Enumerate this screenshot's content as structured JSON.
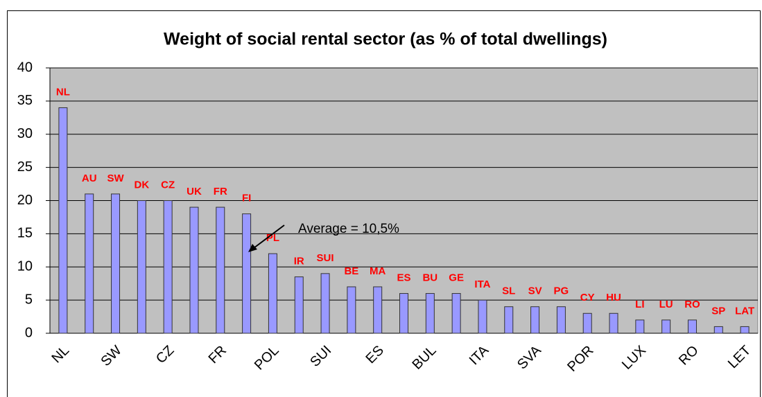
{
  "chart_data": {
    "type": "bar",
    "title": "Weight of social rental sector (as % of total dwellings)",
    "categories": [
      "NL",
      null,
      "SW",
      null,
      "CZ",
      null,
      "FR",
      null,
      "POL",
      null,
      "SUI",
      null,
      "ES",
      null,
      "BUL",
      null,
      "ITA",
      null,
      "SVA",
      null,
      "POR",
      null,
      "LUX",
      null,
      "RO",
      null,
      "LET"
    ],
    "values": [
      34,
      21,
      21,
      20,
      20,
      19,
      19,
      18,
      12,
      8.5,
      9,
      7,
      7,
      6,
      6,
      6,
      5,
      4,
      4,
      4,
      3,
      3,
      2,
      2,
      2,
      1,
      1
    ],
    "bar_labels": [
      "NL",
      "AU",
      "SW",
      "DK",
      "CZ",
      "UK",
      "FR",
      "FI",
      "PL",
      "IR",
      "SUI",
      "BE",
      "MA",
      "ES",
      "BU",
      "GE",
      "ITA",
      "SL",
      "SV",
      "PG",
      "CY",
      "HU",
      "LI",
      "LU",
      "RO",
      "SP",
      "LAT"
    ],
    "color": "#9999ff",
    "annotation": "Average = 10,5%",
    "ylim": [
      0,
      40
    ],
    "yticks": [
      0,
      5,
      10,
      15,
      20,
      25,
      30,
      35,
      40
    ],
    "grid": true
  }
}
